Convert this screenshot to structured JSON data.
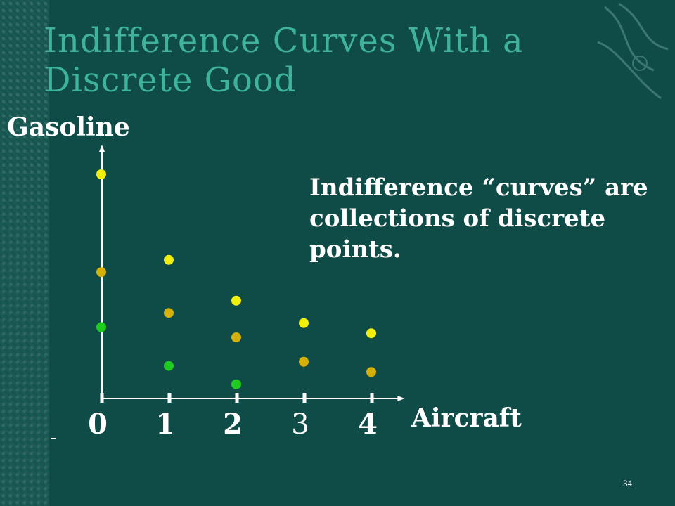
{
  "slide": {
    "title": "Indifference Curves With a Discrete Good",
    "note": "Indifference “curves” are collections of discrete points.",
    "slide_number": "34",
    "colors": {
      "background": "#0f4b47",
      "title": "#3fb29b",
      "text": "#ffffff",
      "axis": "#ffffff"
    }
  },
  "chart_data": {
    "type": "scatter",
    "xlabel": "Aircraft",
    "ylabel": "Gasoline",
    "x_ticks": [
      "0",
      "1",
      "2",
      "3",
      "4"
    ],
    "xlim": [
      0,
      4.4
    ],
    "ylim": [
      0,
      12
    ],
    "grid": false,
    "series": [
      {
        "color": "#f0f00a",
        "points": [
          [
            0,
            11.0
          ],
          [
            1,
            6.8
          ],
          [
            2,
            4.8
          ],
          [
            3,
            3.7
          ],
          [
            4,
            3.2
          ]
        ]
      },
      {
        "color": "#d4b00a",
        "points": [
          [
            0,
            6.2
          ],
          [
            1,
            4.2
          ],
          [
            2,
            3.0
          ],
          [
            3,
            1.8
          ],
          [
            4,
            1.3
          ]
        ]
      },
      {
        "color": "#1fcb1f",
        "points": [
          [
            0,
            3.5
          ],
          [
            1,
            1.6
          ],
          [
            2,
            0.7
          ]
        ]
      }
    ]
  }
}
